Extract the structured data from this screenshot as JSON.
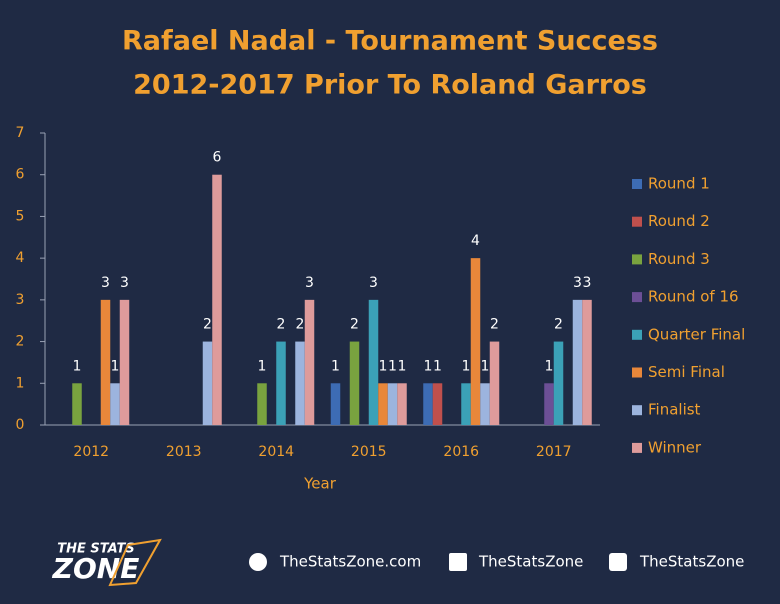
{
  "chart_data": {
    "type": "bar",
    "title": "Rafael Nadal - Tournament Success",
    "subtitle": "2012-2017  Prior To Roland Garros",
    "x_label": "Year",
    "categories": [
      "2012",
      "2013",
      "2014",
      "2015",
      "2016",
      "2017"
    ],
    "series": [
      {
        "name": "Round 1",
        "color": "#3d6cb4",
        "values": [
          null,
          null,
          null,
          1,
          1,
          null
        ]
      },
      {
        "name": "Round 2",
        "color": "#c0504d",
        "values": [
          null,
          null,
          null,
          null,
          1,
          null
        ]
      },
      {
        "name": "Round 3",
        "color": "#79a33f",
        "values": [
          1,
          null,
          1,
          2,
          null,
          null
        ]
      },
      {
        "name": "Round of 16",
        "color": "#6c4f96",
        "values": [
          null,
          null,
          null,
          null,
          null,
          1
        ]
      },
      {
        "name": "Quarter Final",
        "color": "#3ba1b7",
        "values": [
          null,
          null,
          2,
          3,
          1,
          2
        ]
      },
      {
        "name": "Semi Final",
        "color": "#e8873a",
        "values": [
          3,
          null,
          null,
          1,
          4,
          null
        ]
      },
      {
        "name": "Finalist",
        "color": "#9cb4de",
        "values": [
          1,
          2,
          2,
          1,
          1,
          3
        ]
      },
      {
        "name": "Winner",
        "color": "#de9b9b",
        "values": [
          3,
          6,
          3,
          1,
          2,
          3
        ]
      }
    ],
    "ylim": [
      0,
      7
    ],
    "yticks": [
      0,
      1,
      2,
      3,
      4,
      5,
      6,
      7
    ],
    "legend": "right"
  },
  "footer": {
    "logo_top": "THE STATS",
    "logo_bottom": "ZONE",
    "website": "TheStatsZone.com",
    "facebook": "TheStatsZone",
    "twitter": "TheStatsZone"
  }
}
